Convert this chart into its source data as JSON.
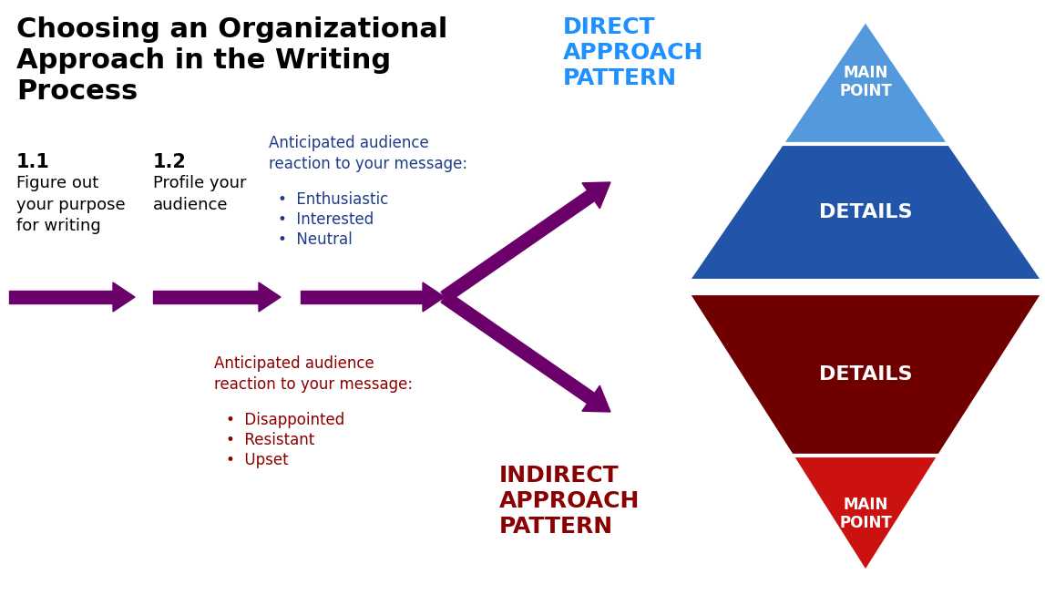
{
  "title_line1": "Choosing an Organizational",
  "title_line2": "Approach in the Writing",
  "title_line3": "Process",
  "title_color": "#000000",
  "title_fontsize": 22,
  "bg_color": "#ffffff",
  "arrow_color": "#6B006B",
  "step1_number": "1.1",
  "step1_text": "Figure out\nyour purpose\nfor writing",
  "step2_number": "1.2",
  "step2_text": "Profile your\naudience",
  "upper_label_title": "Anticipated audience\nreaction to your message:",
  "upper_bullets": [
    "Enthusiastic",
    "Interested",
    "Neutral"
  ],
  "lower_label_title": "Anticipated audience\nreaction to your message:",
  "lower_bullets": [
    "Disappointed",
    "Resistant",
    "Upset"
  ],
  "upper_label_color": "#1F3C88",
  "lower_label_color": "#8B0000",
  "direct_title_line1": "DIRECT",
  "direct_title_line2": "APPROACH",
  "direct_title_line3": "PATTERN",
  "direct_title_color": "#1E90FF",
  "indirect_title_line1": "INDIRECT",
  "indirect_title_line2": "APPROACH",
  "indirect_title_line3": "PATTERN",
  "indirect_title_color": "#8B0000",
  "blue_top": "#5599DD",
  "blue_mid": "#2255AA",
  "blue_bot": "#0A2070",
  "red_dark": "#700000",
  "red_bright": "#CC1111",
  "white": "#ffffff",
  "step_number_fontsize": 15,
  "step_text_fontsize": 13,
  "label_fontsize": 12,
  "tri_label_fontsize": 14,
  "tri_small_fontsize": 12
}
